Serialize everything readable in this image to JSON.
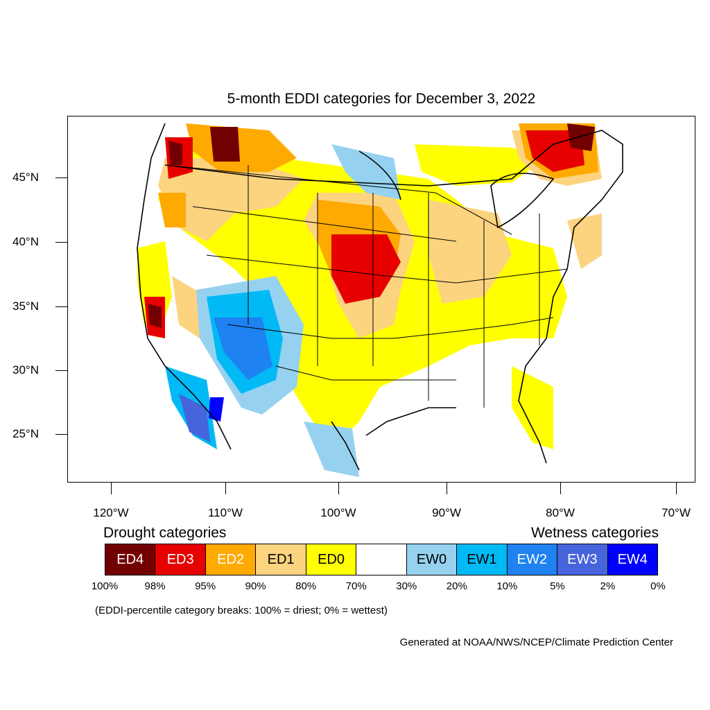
{
  "title": "5-month EDDI categories for December 3, 2022",
  "map": {
    "lat_labels": [
      "45°N",
      "40°N",
      "35°N",
      "30°N",
      "25°N"
    ],
    "lon_labels": [
      "120°W",
      "110°W",
      "100°W",
      "90°W",
      "80°W",
      "70°W"
    ]
  },
  "legend": {
    "drought_heading": "Drought categories",
    "wetness_heading": "Wetness categories",
    "categories": [
      {
        "label": "ED4",
        "color": "#730000",
        "text_color": "#ffffff"
      },
      {
        "label": "ED3",
        "color": "#e60000",
        "text_color": "#ffffff"
      },
      {
        "label": "ED2",
        "color": "#ffaa00",
        "text_color": "#ffffff"
      },
      {
        "label": "ED1",
        "color": "#fcd37f",
        "text_color": "#000000"
      },
      {
        "label": "ED0",
        "color": "#ffff00",
        "text_color": "#000000"
      },
      {
        "label": "",
        "color": "#ffffff",
        "text_color": "#000000"
      },
      {
        "label": "EW0",
        "color": "#96d2f0",
        "text_color": "#000000"
      },
      {
        "label": "EW1",
        "color": "#00b9f5",
        "text_color": "#000000"
      },
      {
        "label": "EW2",
        "color": "#1e82f0",
        "text_color": "#ffffff"
      },
      {
        "label": "EW3",
        "color": "#4664dc",
        "text_color": "#ffffff"
      },
      {
        "label": "EW4",
        "color": "#0000ff",
        "text_color": "#ffffff"
      }
    ],
    "percentiles": [
      "100%",
      "98%",
      "95%",
      "90%",
      "80%",
      "70%",
      "30%",
      "20%",
      "10%",
      "5%",
      "2%",
      "0%"
    ]
  },
  "footnote": "(EDDI-percentile category breaks: 100% = driest; 0% = wettest)",
  "credit": "Generated at NOAA/NWS/NCEP/Climate Prediction Center"
}
